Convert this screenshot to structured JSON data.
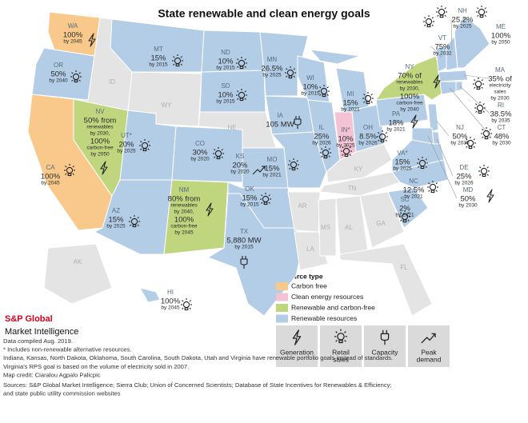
{
  "title": "State renewable and clean energy goals",
  "states": [
    {
      "abbr": "WA",
      "lines": [
        "100%",
        "by 2045"
      ],
      "color": "#f8c98a",
      "icon": "generation"
    },
    {
      "abbr": "OR",
      "lines": [
        "50%",
        "by 2040"
      ],
      "color": "#b3cde6",
      "icon": "retail"
    },
    {
      "abbr": "CA",
      "lines": [
        "100%",
        "by 2045"
      ],
      "color": "#f8c98a",
      "icon": "retail"
    },
    {
      "abbr": "NV",
      "lines": [
        "50% from",
        "renewables",
        "by 2030,",
        "100%",
        "carbon-free",
        "by 2050"
      ],
      "color": "#bfd67e",
      "icon": "generation"
    },
    {
      "abbr": "ID",
      "color": "#e4e4e4"
    },
    {
      "abbr": "MT",
      "lines": [
        "15%",
        "by 2015"
      ],
      "color": "#b3cde6",
      "icon": "retail"
    },
    {
      "abbr": "WY",
      "color": "#e4e4e4"
    },
    {
      "abbr": "UT*",
      "lines": [
        "20%",
        "by 2025"
      ],
      "color": "#b3cde6",
      "icon": "retail"
    },
    {
      "abbr": "AZ",
      "lines": [
        "15%",
        "by 2025"
      ],
      "color": "#b3cde6",
      "icon": "retail"
    },
    {
      "abbr": "CO",
      "lines": [
        "30%",
        "by 2020"
      ],
      "color": "#b3cde6",
      "icon": "retail"
    },
    {
      "abbr": "NM",
      "lines": [
        "80% from",
        "renewables",
        "by 2040,",
        "100%",
        "carbon-free",
        "by 2045"
      ],
      "color": "#bfd67e",
      "icon": "generation"
    },
    {
      "abbr": "ND",
      "lines": [
        "10%",
        "by 2015"
      ],
      "color": "#b3cde6",
      "icon": "retail"
    },
    {
      "abbr": "SD",
      "lines": [
        "10%",
        "by 2015"
      ],
      "color": "#b3cde6",
      "icon": "retail"
    },
    {
      "abbr": "NE",
      "color": "#e4e4e4"
    },
    {
      "abbr": "KS",
      "lines": [
        "20%",
        "by 2020"
      ],
      "color": "#b3cde6",
      "icon": "peak"
    },
    {
      "abbr": "OK",
      "lines": [
        "15%",
        "by 2015"
      ],
      "color": "#b3cde6",
      "icon": "retail"
    },
    {
      "abbr": "TX",
      "lines": [
        "5,880 MW",
        "by 2015"
      ],
      "color": "#b3cde6",
      "icon": "capacity"
    },
    {
      "abbr": "MN",
      "lines": [
        "26.5%",
        "by 2025"
      ],
      "color": "#b3cde6",
      "icon": "retail"
    },
    {
      "abbr": "IA",
      "lines": [
        "105 MW"
      ],
      "color": "#b3cde6",
      "icon": "capacity"
    },
    {
      "abbr": "MO",
      "lines": [
        "15%",
        "by 2021"
      ],
      "color": "#b3cde6",
      "icon": "retail"
    },
    {
      "abbr": "AR",
      "color": "#e4e4e4"
    },
    {
      "abbr": "LA",
      "color": "#e4e4e4"
    },
    {
      "abbr": "MS",
      "color": "#e4e4e4"
    },
    {
      "abbr": "AL",
      "color": "#e4e4e4"
    },
    {
      "abbr": "GA",
      "color": "#e4e4e4"
    },
    {
      "abbr": "FL",
      "color": "#e4e4e4"
    },
    {
      "abbr": "TN",
      "color": "#e4e4e4"
    },
    {
      "abbr": "KY",
      "color": "#e4e4e4"
    },
    {
      "abbr": "WI",
      "lines": [
        "10%",
        "by 2015"
      ],
      "color": "#b3cde6",
      "icon": "retail"
    },
    {
      "abbr": "IL",
      "lines": [
        "25%",
        "by 2026"
      ],
      "color": "#b3cde6",
      "icon": "retail"
    },
    {
      "abbr": "MI",
      "lines": [
        "15%",
        "by 2021"
      ],
      "color": "#b3cde6",
      "icon": "retail"
    },
    {
      "abbr": "IN*",
      "lines": [
        "10%",
        "by 2025"
      ],
      "color": "#f3c3d5",
      "icon": "retail"
    },
    {
      "abbr": "OH",
      "lines": [
        "8.5%",
        "by 2026"
      ],
      "color": "#b3cde6",
      "icon": "retail"
    },
    {
      "abbr": "PA",
      "lines": [
        "18%",
        "by 2021"
      ],
      "color": "#b3cde6",
      "icon": "generation"
    },
    {
      "abbr": "VA*",
      "lines": [
        "15%",
        "by 2025"
      ],
      "color": "#b3cde6",
      "icon": "retail"
    },
    {
      "abbr": "NC",
      "lines": [
        "12.5%",
        "by 2021"
      ],
      "color": "#b3cde6",
      "icon": "retail"
    },
    {
      "abbr": "SC",
      "lines": [
        "2%",
        "by 2021"
      ],
      "color": "#b3cde6",
      "icon": "retail"
    },
    {
      "abbr": "NY",
      "lines": [
        "70% of",
        "renewables",
        "by 2030,",
        "100%",
        "carbon-free",
        "by 2040"
      ],
      "color": "#bfd67e",
      "icon": "generation"
    },
    {
      "abbr": "VT",
      "lines": [
        "75%",
        "by 2032"
      ],
      "color": "#b3cde6",
      "icon": "retail"
    },
    {
      "abbr": "NH",
      "lines": [
        "25.2%",
        "by 2025"
      ],
      "color": "#b3cde6",
      "icon": "retail"
    },
    {
      "abbr": "ME",
      "lines": [
        "100%",
        "by 2050"
      ],
      "color": "#b3cde6",
      "icon": "retail"
    },
    {
      "abbr": "MA",
      "lines": [
        "35% of",
        "electricity",
        "sales",
        "by 2030"
      ],
      "color": "#b3cde6",
      "icon": "retail"
    },
    {
      "abbr": "RI",
      "lines": [
        "38.5%",
        "by 2035"
      ],
      "color": "#b3cde6",
      "icon": "retail"
    },
    {
      "abbr": "CT",
      "lines": [
        "48%",
        "by 2030"
      ],
      "color": "#b3cde6",
      "icon": "retail"
    },
    {
      "abbr": "NJ",
      "lines": [
        "50%",
        "by 2030"
      ],
      "color": "#b3cde6",
      "icon": "retail"
    },
    {
      "abbr": "DE",
      "lines": [
        "25%",
        "by 2026"
      ],
      "color": "#b3cde6",
      "icon": "retail"
    },
    {
      "abbr": "MD",
      "lines": [
        "50%",
        "by 2030"
      ],
      "color": "#b3cde6",
      "icon": "generation"
    },
    {
      "abbr": "AK",
      "color": "#e4e4e4"
    },
    {
      "abbr": "HI",
      "lines": [
        "100%",
        "by 2045"
      ],
      "color": "#b3cde6",
      "icon": "retail"
    }
  ],
  "legend": {
    "title": "Resource type",
    "items": [
      {
        "label": "Carbon free",
        "color": "#f8c98a"
      },
      {
        "label": "Clean energy resources",
        "color": "#f3c3d5"
      },
      {
        "label": "Renewable and carbon-free",
        "color": "#bfd67e"
      },
      {
        "label": "Renewable resources",
        "color": "#b3cde6"
      }
    ]
  },
  "icon_legend": [
    {
      "icon": "generation",
      "lines": [
        "Generation"
      ]
    },
    {
      "icon": "retail",
      "lines": [
        "Retail",
        "sales"
      ]
    },
    {
      "icon": "capacity",
      "lines": [
        "Capacity"
      ]
    },
    {
      "icon": "peak",
      "lines": [
        "Peak",
        "demand"
      ]
    }
  ],
  "logo": {
    "name": "S&P Global",
    "sub": "Market Intelligence"
  },
  "notes": [
    "Data compiled Aug. 2019.",
    "* Includes non-renewable alternative resources.",
    "Indiana, Kansas, North Dakota, Oklahoma, South Carolina, South Dakota, Utah and Virginia have renewable portfolio goals instead of standards.",
    "Virginia's RPS goal is based on the volume of electricity sold in 2007.",
    "Map credit: Ciaralou Agpalo Palicpic",
    "Sources: S&P Global Market Intelligence; Sierra Club; Union of Concerned Scientists; Database of State Incentives for Renewables & Efficiency;",
    "and state public utility commission websites"
  ]
}
